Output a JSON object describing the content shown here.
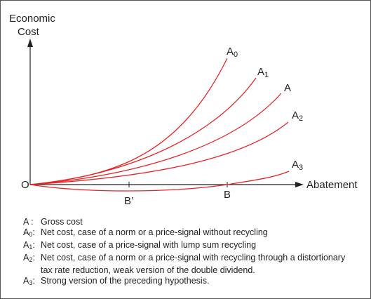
{
  "axes": {
    "y_label_line1": "Economic",
    "y_label_line2": "Cost",
    "x_label": "Abatement",
    "origin_label": "O",
    "point_b": "B",
    "point_b_prime": "B’"
  },
  "colors": {
    "curve": "#e8262a",
    "axis": "#222222"
  },
  "curves": [
    {
      "id": "A0",
      "base": "A",
      "sub": "0"
    },
    {
      "id": "A1",
      "base": "A",
      "sub": "1"
    },
    {
      "id": "A",
      "base": "A",
      "sub": ""
    },
    {
      "id": "A2",
      "base": "A",
      "sub": "2"
    },
    {
      "id": "A3",
      "base": "A",
      "sub": "3"
    }
  ],
  "legend": [
    {
      "key": "A",
      "sub": "",
      "sep": " : ",
      "text": "Gross cost"
    },
    {
      "key": "A",
      "sub": "0",
      "sep": ": ",
      "text": "Net cost, case of a norm or a price-signal without recycling"
    },
    {
      "key": "A",
      "sub": "1",
      "sep": ": ",
      "text": "Net cost, case of a price-signal with lump sum recycling"
    },
    {
      "key": "A",
      "sub": "2",
      "sep": ": ",
      "text": "Net cost, case of a norm or a price-signal with recycling through a distortionary"
    },
    {
      "key": "",
      "sub": "",
      "sep": "",
      "text": "tax rate reduction, weak version of the double dividend."
    },
    {
      "key": "A",
      "sub": "3",
      "sep": ": ",
      "text": "Strong version of the preceding hypothesis."
    }
  ]
}
